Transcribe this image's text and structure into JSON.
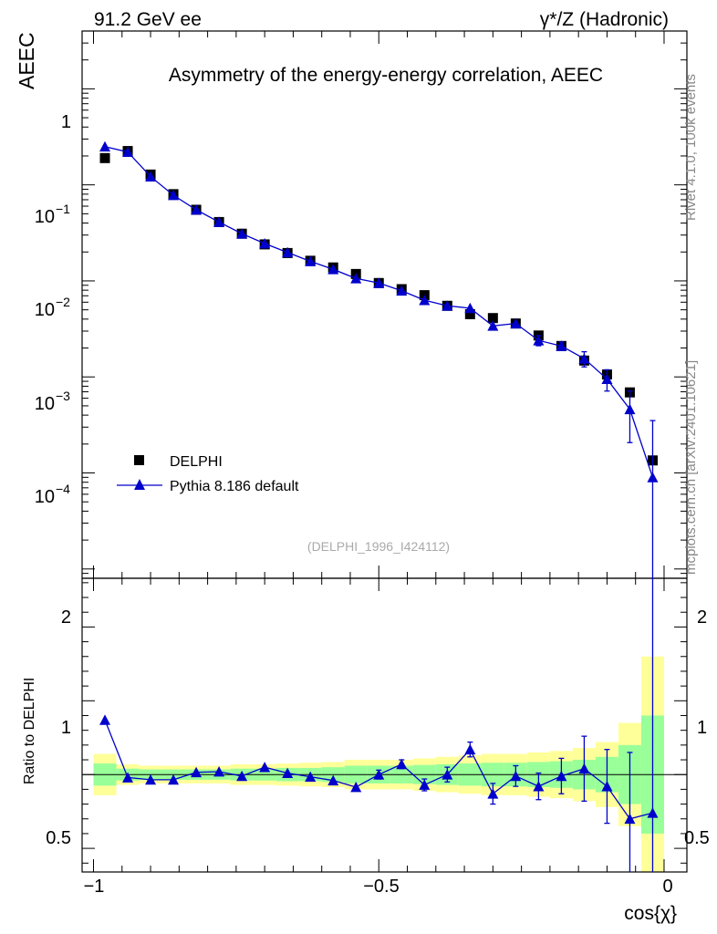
{
  "header": {
    "energy_label": "91.2 GeV ee",
    "process_label": "γ*/Z (Hadronic)",
    "rivet_label": "Rivet 4.1.0,  100k events",
    "mcplots_label": "mcplots.cern.ch [arXiv:2401.10621]"
  },
  "colors": {
    "mc": "#0000cc",
    "data": "#000000",
    "band_outer": "#ffff99",
    "band_inner": "#99ff99"
  },
  "chart_data": [
    {
      "type": "scatter",
      "title": "Asymmetry of the energy-energy correlation, AEEC",
      "ylabel": "AEEC",
      "xlabel": "cos{χ}",
      "yscale": "log",
      "xlim": [
        -1.02,
        0.04
      ],
      "ylim": [
        8e-06,
        4
      ],
      "watermark": "(DELPHI_1996_I424112)",
      "y_tick_labels": [
        "10^-4",
        "10^-3",
        "10^-2",
        "10^-1",
        "1"
      ],
      "legend": [
        "DELPHI",
        "Pythia 8.186 default"
      ],
      "legend_position": "bottom-left",
      "x": [
        -0.98,
        -0.94,
        -0.9,
        -0.86,
        -0.82,
        -0.78,
        -0.74,
        -0.7,
        -0.66,
        -0.62,
        -0.58,
        -0.54,
        -0.5,
        -0.46,
        -0.42,
        -0.38,
        -0.34,
        -0.3,
        -0.26,
        -0.22,
        -0.18,
        -0.14,
        -0.1,
        -0.06,
        -0.02
      ],
      "series": [
        {
          "name": "DELPHI",
          "values": [
            0.19,
            0.225,
            0.128,
            0.08,
            0.055,
            0.041,
            0.031,
            0.024,
            0.0195,
            0.0162,
            0.0138,
            0.0118,
            0.0095,
            0.0082,
            0.0071,
            0.0055,
            0.0045,
            0.0041,
            0.0036,
            0.0027,
            0.0021,
            0.00148,
            0.00106,
            0.00069,
            0.000135
          ]
        },
        {
          "name": "Pythia 8.186 default",
          "values": [
            0.25,
            0.22,
            0.122,
            0.078,
            0.055,
            0.041,
            0.031,
            0.0245,
            0.0198,
            0.016,
            0.0132,
            0.0106,
            0.0095,
            0.0079,
            0.0063,
            0.0055,
            0.0052,
            0.0034,
            0.0036,
            0.0024,
            0.0021,
            0.00155,
            0.00095,
            0.00046,
            9e-05
          ],
          "err_rel": [
            0,
            0,
            0,
            0,
            0,
            0,
            0,
            0,
            0,
            0,
            0,
            0,
            0,
            0,
            0,
            0,
            0,
            0,
            0,
            0.12,
            0.1,
            0.18,
            0.25,
            0.55,
            2.9
          ]
        }
      ]
    },
    {
      "type": "line",
      "ylabel": "Ratio to DELPHI",
      "xlabel": "cos{χ}",
      "xlim": [
        -1.02,
        0.04
      ],
      "ylim": [
        0.34,
        2.33
      ],
      "x_tick_labels": [
        "−1",
        "−0.5",
        "0"
      ],
      "y_tick_labels": [
        "0.5",
        "1",
        "2"
      ],
      "x": [
        -0.98,
        -0.94,
        -0.9,
        -0.86,
        -0.82,
        -0.78,
        -0.74,
        -0.7,
        -0.66,
        -0.62,
        -0.58,
        -0.54,
        -0.5,
        -0.46,
        -0.42,
        -0.38,
        -0.34,
        -0.3,
        -0.26,
        -0.22,
        -0.18,
        -0.14,
        -0.1,
        -0.06,
        -0.02
      ],
      "ratio": [
        1.37,
        0.98,
        0.965,
        0.965,
        1.015,
        1.02,
        0.99,
        1.05,
        1.01,
        0.985,
        0.96,
        0.915,
        1.0,
        1.07,
        0.93,
        1.0,
        1.17,
        0.87,
        0.99,
        0.92,
        0.99,
        1.04,
        0.92,
        0.7,
        0.74
      ],
      "ratio_err": [
        0,
        0,
        0,
        0,
        0,
        0,
        0,
        0,
        0,
        0,
        0,
        0,
        0.03,
        0.03,
        0.04,
        0.05,
        0.05,
        0.07,
        0.07,
        0.09,
        0.12,
        0.22,
        0.25,
        0.45,
        2.1
      ],
      "band_inner": [
        0.075,
        0.04,
        0.035,
        0.035,
        0.035,
        0.035,
        0.04,
        0.04,
        0.045,
        0.045,
        0.05,
        0.06,
        0.06,
        0.06,
        0.065,
        0.07,
        0.075,
        0.08,
        0.08,
        0.085,
        0.09,
        0.1,
        0.12,
        0.2,
        0.4
      ],
      "band_outer": [
        0.14,
        0.07,
        0.06,
        0.06,
        0.06,
        0.06,
        0.07,
        0.07,
        0.075,
        0.08,
        0.085,
        0.1,
        0.1,
        0.1,
        0.11,
        0.12,
        0.13,
        0.14,
        0.14,
        0.15,
        0.16,
        0.18,
        0.22,
        0.35,
        0.8
      ]
    }
  ]
}
